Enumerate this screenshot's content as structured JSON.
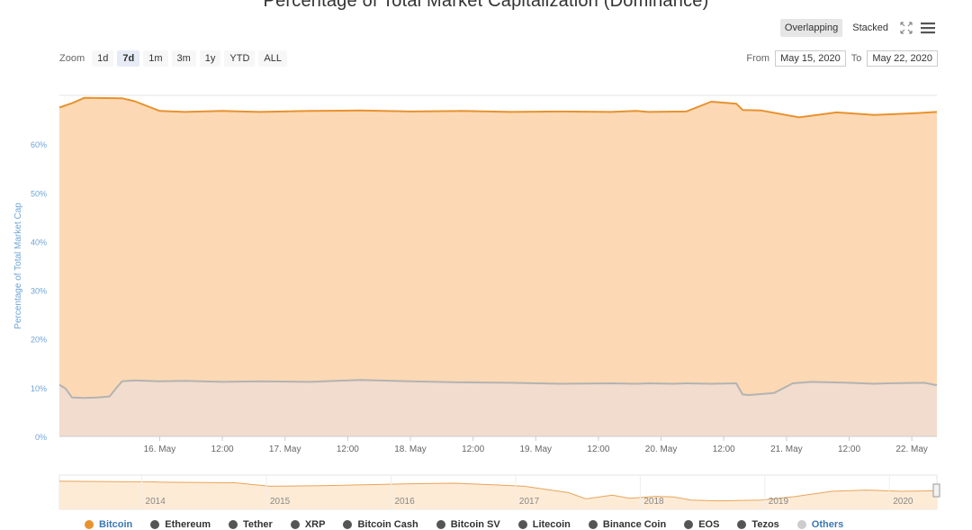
{
  "title": "Percentage of Total Market Capitalization (Dominance)",
  "view_toggle": {
    "overlapping": "Overlapping",
    "stacked": "Stacked",
    "active": "overlapping"
  },
  "icons": {
    "fullscreen": "fullscreen-icon",
    "menu": "hamburger-menu-icon"
  },
  "zoom": {
    "label": "Zoom",
    "options": [
      "1d",
      "7d",
      "1m",
      "3m",
      "1y",
      "YTD",
      "ALL"
    ],
    "active": "7d"
  },
  "range": {
    "from_label": "From",
    "from_value": "May 15, 2020",
    "to_label": "To",
    "to_value": "May 22, 2020"
  },
  "chart_data": {
    "type": "area",
    "ylabel": "Percentage of Total Market Cap",
    "ylim": [
      0,
      70
    ],
    "y_ticks": [
      "0%",
      "10%",
      "20%",
      "30%",
      "40%",
      "50%",
      "60%"
    ],
    "x_tick_labels": [
      "16. May",
      "12:00",
      "17. May",
      "12:00",
      "18. May",
      "12:00",
      "19. May",
      "12:00",
      "20. May",
      "12:00",
      "21. May",
      "12:00",
      "22. May",
      "12:00"
    ],
    "grid": true,
    "legend_position": "bottom",
    "series": [
      {
        "name": "Bitcoin",
        "color": "#e8922f",
        "fill": "#fcd9b4",
        "x": [
          0,
          0.1,
          0.2,
          0.5,
          0.6,
          0.8,
          1.0,
          1.3,
          1.6,
          2.0,
          2.4,
          2.8,
          3.2,
          3.6,
          4.0,
          4.4,
          4.6,
          4.7,
          5.0,
          5.2,
          5.4,
          5.45,
          5.6,
          5.9,
          6.2,
          6.5,
          6.8,
          7.0
        ],
        "values": [
          67.5,
          68.4,
          69.5,
          69.4,
          68.8,
          66.8,
          66.6,
          66.8,
          66.6,
          66.8,
          66.9,
          66.7,
          66.8,
          66.6,
          66.7,
          66.6,
          66.8,
          66.6,
          66.7,
          68.7,
          68.3,
          67.0,
          66.9,
          65.5,
          66.5,
          66.0,
          66.3,
          66.6
        ]
      },
      {
        "name": "Others",
        "color": "#b3b3b3",
        "fill": "#f2dccd",
        "x": [
          0,
          0.05,
          0.1,
          0.2,
          0.3,
          0.4,
          0.45,
          0.5,
          0.6,
          0.8,
          1.0,
          1.3,
          1.6,
          2.0,
          2.2,
          2.4,
          2.8,
          3.2,
          3.6,
          4.0,
          4.4,
          4.6,
          4.7,
          4.9,
          5.0,
          5.2,
          5.4,
          5.45,
          5.5,
          5.7,
          5.85,
          6.0,
          6.3,
          6.5,
          6.6,
          6.9,
          7.0
        ],
        "values": [
          10.6,
          9.8,
          8.0,
          7.9,
          8.0,
          8.2,
          9.8,
          11.3,
          11.5,
          11.3,
          11.4,
          11.2,
          11.3,
          11.2,
          11.4,
          11.6,
          11.3,
          11.1,
          11.0,
          10.8,
          10.9,
          10.8,
          10.9,
          10.8,
          10.9,
          10.8,
          10.9,
          8.6,
          8.5,
          8.9,
          10.9,
          11.2,
          11.0,
          10.8,
          10.9,
          11.0,
          10.5
        ]
      }
    ],
    "navigator": {
      "labels": [
        "2014",
        "2015",
        "2016",
        "2017",
        "2018",
        "2019",
        "2020"
      ]
    }
  },
  "legend": [
    {
      "name": "Bitcoin",
      "color": "#e8922f"
    },
    {
      "name": "Ethereum",
      "color": "#555555"
    },
    {
      "name": "Tether",
      "color": "#555555"
    },
    {
      "name": "XRP",
      "color": "#555555"
    },
    {
      "name": "Bitcoin Cash",
      "color": "#555555"
    },
    {
      "name": "Bitcoin SV",
      "color": "#555555"
    },
    {
      "name": "Litecoin",
      "color": "#555555"
    },
    {
      "name": "Binance Coin",
      "color": "#555555"
    },
    {
      "name": "EOS",
      "color": "#555555"
    },
    {
      "name": "Tezos",
      "color": "#555555"
    },
    {
      "name": "Others",
      "color": "#cccccc"
    }
  ]
}
